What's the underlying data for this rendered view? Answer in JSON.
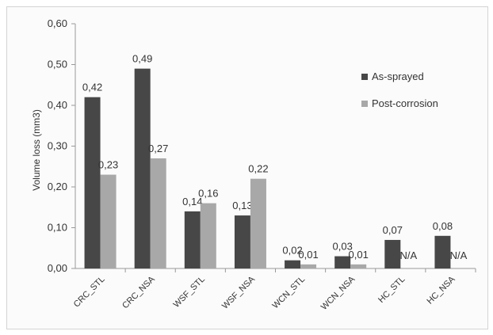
{
  "chart_data": {
    "type": "bar",
    "ylabel": "Volume loss (mm3)",
    "ylim": [
      0,
      0.6
    ],
    "ytick_step": 0.1,
    "yticks": [
      "0,00",
      "0,10",
      "0,20",
      "0,30",
      "0,40",
      "0,50",
      "0,60"
    ],
    "legend_position": "top-right",
    "grid": false,
    "categories": [
      "CRC_STL",
      "CRC_NSA",
      "WSF_STL",
      "WSF_NSA",
      "WCN_STL",
      "WCN_NSA",
      "HC_STL",
      "HC_NSA"
    ],
    "series": [
      {
        "name": "As-sprayed",
        "color": "#474747",
        "values": [
          0.42,
          0.49,
          0.14,
          0.13,
          0.02,
          0.03,
          0.07,
          0.08
        ],
        "labels": [
          "0,42",
          "0,49",
          "0,14",
          "0,13",
          "0,02",
          "0,03",
          "0,07",
          "0,08"
        ]
      },
      {
        "name": "Post-corrosion",
        "color": "#a8a8a8",
        "values": [
          0.23,
          0.27,
          0.16,
          0.22,
          0.01,
          0.01,
          null,
          null
        ],
        "labels": [
          "0,23",
          "0,27",
          "0,16",
          "0,22",
          "0,01",
          "0,01",
          "N/A",
          "N/A"
        ]
      }
    ]
  }
}
